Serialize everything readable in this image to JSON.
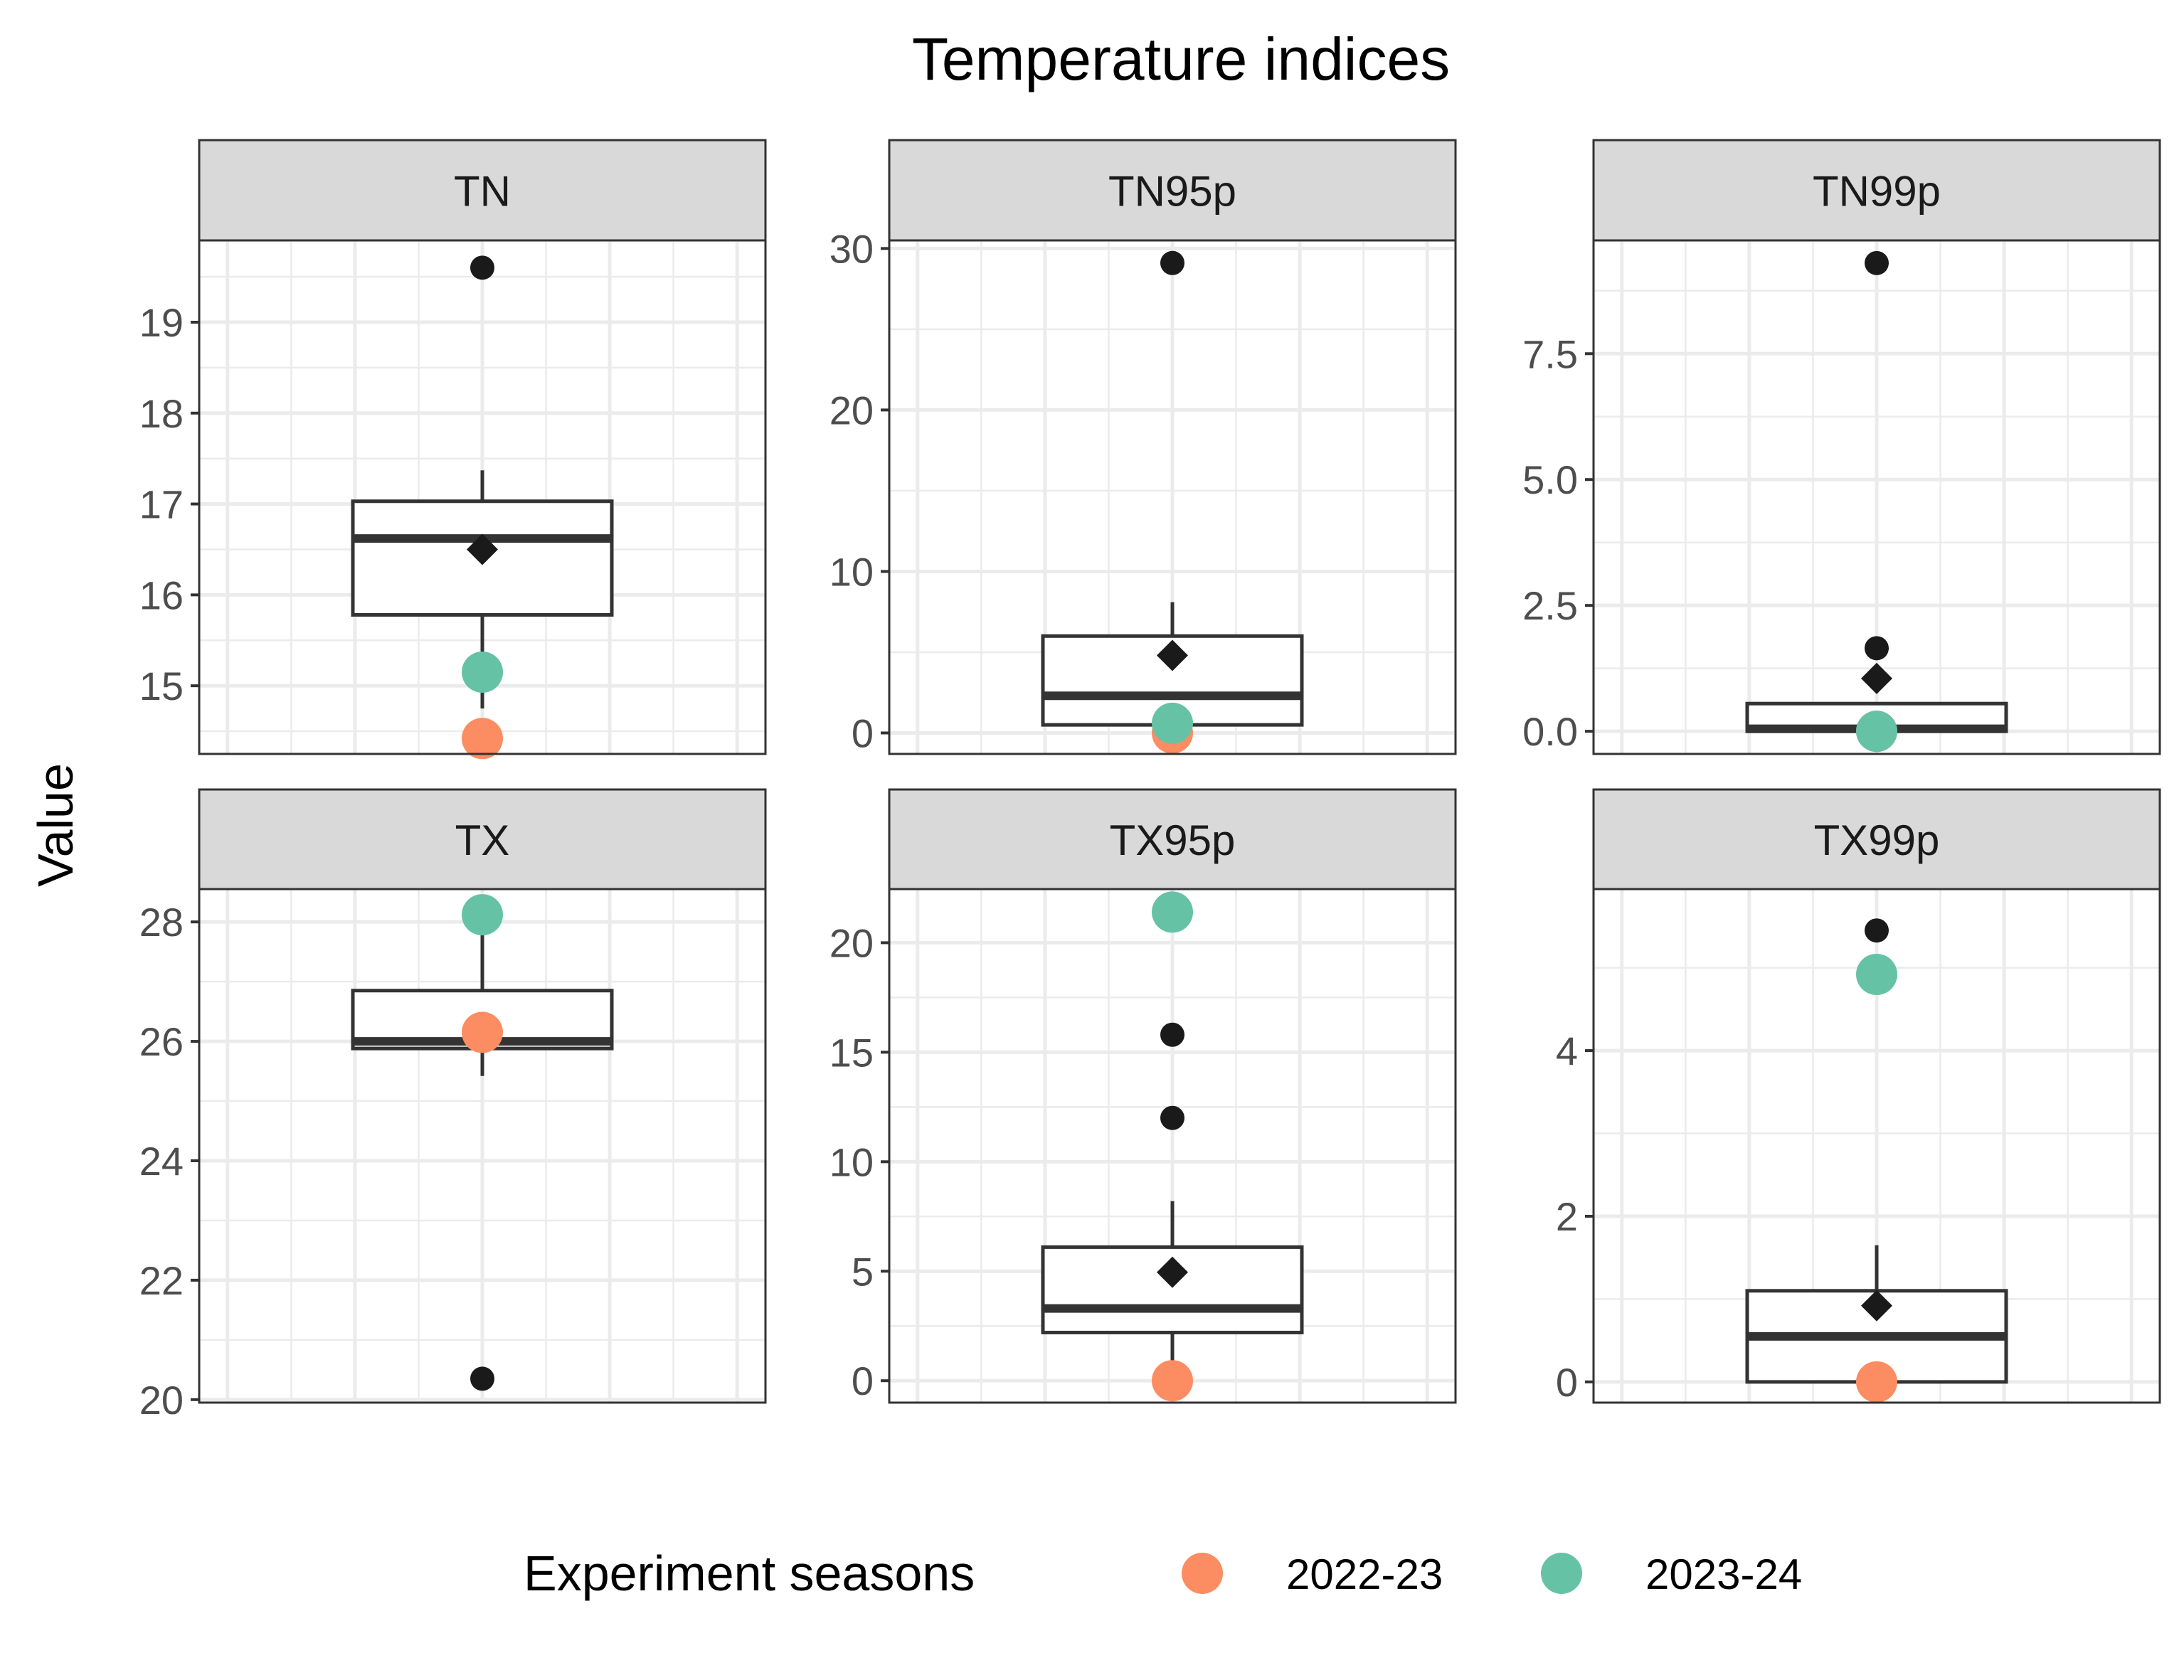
{
  "chart_data": {
    "type": "box",
    "title": "Temperature indices",
    "ylabel": "Value",
    "legend": {
      "title": "Experiment seasons",
      "position": "bottom",
      "entries": [
        {
          "label": "2022-23",
          "color": "#FC8D62"
        },
        {
          "label": "2023-24",
          "color": "#66C2A5"
        }
      ]
    },
    "grid": true,
    "facets": [
      {
        "label": "TN",
        "ylim": [
          14.25,
          19.9
        ],
        "yticks": [
          15,
          16,
          17,
          18,
          19
        ],
        "ytick_labels": [
          "15",
          "16",
          "17",
          "18",
          "19"
        ],
        "box": {
          "q1": 15.78,
          "median": 16.62,
          "q3": 17.03,
          "whisker_low": 14.75,
          "whisker_high": 17.37
        },
        "mean": 16.5,
        "outliers": [
          19.6
        ],
        "seasons": {
          "2022-23": 14.42,
          "2023-24": 15.15
        }
      },
      {
        "label": "TN95p",
        "ylim": [
          -1.3,
          30.5
        ],
        "yticks": [
          0,
          10,
          20,
          30
        ],
        "ytick_labels": [
          "0",
          "10",
          "20",
          "30"
        ],
        "box": {
          "q1": 0.5,
          "median": 2.3,
          "q3": 6.0,
          "whisker_low": 0,
          "whisker_high": 8.1
        },
        "mean": 4.8,
        "outliers": [
          29.1
        ],
        "seasons": {
          "2022-23": 0.0,
          "2023-24": 0.6
        }
      },
      {
        "label": "TN99p",
        "ylim": [
          -0.45,
          9.75
        ],
        "yticks": [
          0,
          2.5,
          5,
          7.5
        ],
        "ytick_labels": [
          "0.0",
          "2.5",
          "5.0",
          "7.5"
        ],
        "box": {
          "q1": 0,
          "median": 0.05,
          "q3": 0.55,
          "whisker_low": 0,
          "whisker_high": 0.55
        },
        "mean": 1.05,
        "outliers": [
          1.65,
          9.3
        ],
        "seasons": {
          "2022-23": 0.0,
          "2023-24": 0.0
        }
      },
      {
        "label": "TX",
        "ylim": [
          19.95,
          28.55
        ],
        "yticks": [
          20,
          22,
          24,
          26,
          28
        ],
        "ytick_labels": [
          "20",
          "22",
          "24",
          "26",
          "28"
        ],
        "box": {
          "q1": 25.88,
          "median": 26.0,
          "q3": 26.85,
          "whisker_low": 25.42,
          "whisker_high": 28.12
        },
        "mean": 26.05,
        "outliers": [
          20.35
        ],
        "seasons": {
          "2022-23": 26.15,
          "2023-24": 28.12
        }
      },
      {
        "label": "TX95p",
        "ylim": [
          -1.0,
          22.45
        ],
        "yticks": [
          0,
          5,
          10,
          15,
          20
        ],
        "ytick_labels": [
          "0",
          "5",
          "10",
          "15",
          "20"
        ],
        "box": {
          "q1": 2.2,
          "median": 3.3,
          "q3": 6.1,
          "whisker_low": 0,
          "whisker_high": 8.2
        },
        "mean": 4.95,
        "outliers": [
          12.0,
          15.8
        ],
        "seasons": {
          "2022-23": 0.0,
          "2023-24": 21.4
        }
      },
      {
        "label": "TX99p",
        "ylim": [
          -0.25,
          5.95
        ],
        "yticks": [
          0,
          2,
          4
        ],
        "ytick_labels": [
          "0",
          "2",
          "4"
        ],
        "box": {
          "q1": 0,
          "median": 0.55,
          "q3": 1.1,
          "whisker_low": 0,
          "whisker_high": 1.65
        },
        "mean": 0.92,
        "outliers": [
          5.45
        ],
        "seasons": {
          "2022-23": 0.0,
          "2023-24": 4.92
        }
      }
    ]
  }
}
